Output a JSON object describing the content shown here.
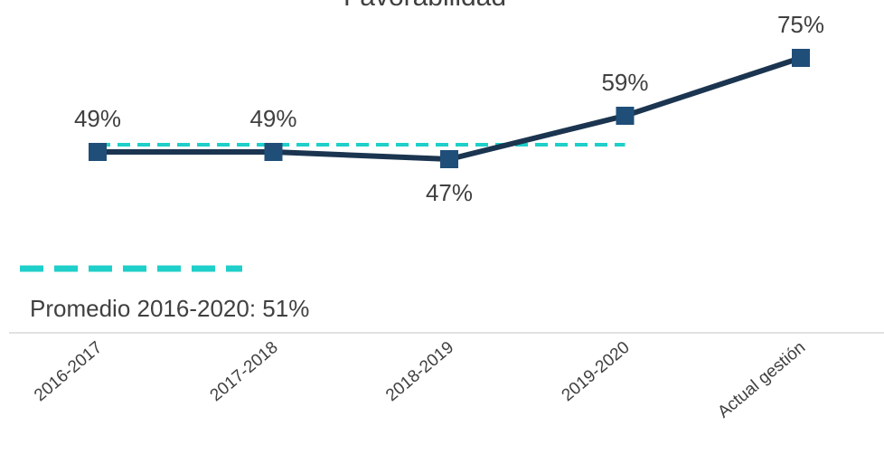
{
  "chart_data": {
    "type": "line",
    "title": "Favorabilidad",
    "categories": [
      "2016-2017",
      "2017-2018",
      "2018-2019",
      "2019-2020",
      "Actual gestión"
    ],
    "series": [
      {
        "name": "Favorabilidad",
        "color": "#1b3550",
        "marker_color": "#1f4e79",
        "values": [
          49,
          49,
          47,
          59,
          75
        ],
        "value_labels": [
          "49%",
          "49%",
          "47%",
          "59%",
          "75%"
        ]
      },
      {
        "name": "Promedio 2016-2020: 51%",
        "color": "#1fcfc9",
        "dashed": true,
        "values": [
          51,
          51,
          51,
          51,
          null
        ]
      }
    ],
    "ylim": [
      20,
      90
    ]
  }
}
